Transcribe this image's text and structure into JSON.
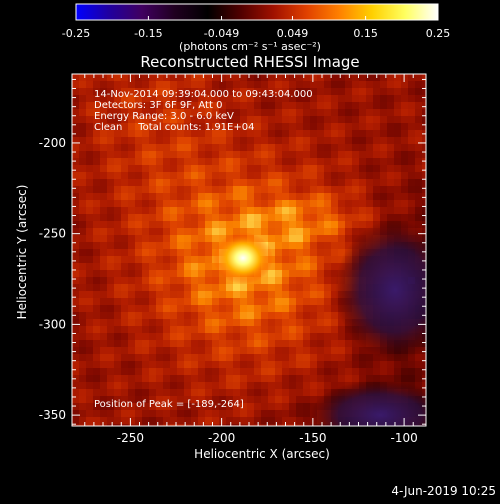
{
  "chart_data": {
    "type": "heatmap",
    "title": "Reconstructed RHESSI Image",
    "xlabel": "Heliocentric X (arcsec)",
    "ylabel": "Heliocentric Y (arcsec)",
    "x_ticks": [
      -250,
      -200,
      -150,
      -100
    ],
    "y_ticks": [
      -200,
      -250,
      -300,
      -350
    ],
    "x_tick_labels": [
      "-250",
      "-200",
      "-150",
      "-100"
    ],
    "y_tick_labels": [
      "-200",
      "-250",
      "-300",
      "-350"
    ],
    "xlim": [
      -282,
      -88
    ],
    "ylim": [
      -356,
      -162
    ],
    "colorbar": {
      "min": -0.25,
      "max": 0.25,
      "ticks": [
        -0.25,
        -0.15,
        -0.049,
        0.049,
        0.15,
        0.25
      ],
      "tick_labels": [
        "-0.25",
        "-0.15",
        "-0.049",
        "0.049",
        "0.15",
        "0.25"
      ],
      "unit_label": "(photons cm⁻² s⁻¹ asec⁻²)",
      "colormap": [
        "#0000ff",
        "#2000a0",
        "#400060",
        "#200020",
        "#000000",
        "#500000",
        "#a01000",
        "#e04000",
        "#ff8000",
        "#ffd000",
        "#ffff60",
        "#ffffff"
      ]
    },
    "annotations": {
      "time_range": "14-Nov-2014 09:39:04.000 to 09:43:04.000",
      "detectors": "Detectors: 3F 6F 9F, Att 0",
      "energy_range": "Energy Range: 3.0 - 6.0 keV",
      "method_and_counts": "Clean     Total counts: 1.91E+04",
      "peak_position": "Position of Peak = [-189,-264]"
    },
    "peak": {
      "x": -189,
      "y": -264,
      "value": 0.25
    }
  },
  "footer": {
    "date": "4-Jun-2019 10:25"
  }
}
